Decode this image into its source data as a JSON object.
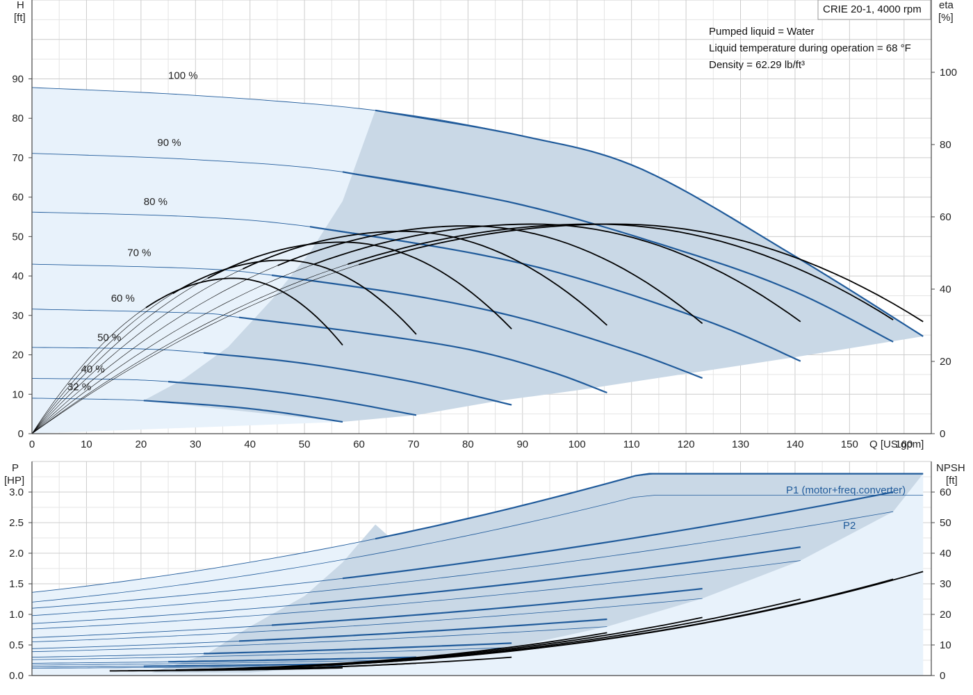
{
  "header": {
    "model": "CRIE 20-1, 4000 rpm",
    "notes": [
      "Pumped liquid = Water",
      "Liquid temperature during operation = 68 °F",
      "Density = 62.29 lb/ft³"
    ]
  },
  "colors": {
    "curve": "#1f5a9a",
    "area": "#c9d8e6",
    "area_light": "#e8f2fb",
    "eff": "#000000",
    "grid": "#cccccc"
  },
  "chart_data": [
    {
      "type": "line",
      "title": "",
      "xlabel": "Q [US gpm]",
      "ylabel": "H\n[ft]",
      "ylabel_top": "H",
      "ylabel_unit": "[ft]",
      "y2label_top": "eta",
      "y2label_unit": "[%]",
      "xlim": [
        0,
        165
      ],
      "ylim": [
        0,
        110
      ],
      "y2lim": [
        0,
        120
      ],
      "xticks": [
        0,
        10,
        20,
        30,
        40,
        50,
        60,
        70,
        80,
        90,
        100,
        110,
        120,
        130,
        140,
        150,
        160
      ],
      "yticks": [
        0,
        10,
        20,
        30,
        40,
        50,
        60,
        70,
        80,
        90
      ],
      "y2ticks": [
        0,
        20,
        40,
        60,
        80,
        100
      ],
      "speed_labels": [
        {
          "text": "100 %",
          "q": 25,
          "h": 90
        },
        {
          "text": "90 %",
          "q": 23,
          "h": 73
        },
        {
          "text": "80 %",
          "q": 20.5,
          "h": 58
        },
        {
          "text": "70 %",
          "q": 17.5,
          "h": 45
        },
        {
          "text": "60 %",
          "q": 14.5,
          "h": 33.5
        },
        {
          "text": "50 %",
          "q": 12,
          "h": 23.5
        },
        {
          "text": "40 %",
          "q": 9,
          "h": 15.5
        },
        {
          "text": "32 %",
          "q": 6.5,
          "h": 11
        }
      ],
      "head_curves": [
        {
          "speed": 100,
          "qmax": 163.5,
          "points": [
            [
              0,
              87.8
            ],
            [
              30,
              85.8
            ],
            [
              63,
              82
            ],
            [
              90,
              75.5
            ],
            [
              112,
              67
            ],
            [
              140,
              45
            ],
            [
              163.5,
              24.7
            ]
          ]
        },
        {
          "speed": 90,
          "qmax": 158,
          "points": [
            [
              0,
              71.1
            ],
            [
              30,
              69.5
            ],
            [
              57,
              66.4
            ],
            [
              90,
              58
            ],
            [
              120,
              46
            ],
            [
              140,
              36
            ],
            [
              158,
              23.3
            ]
          ]
        },
        {
          "speed": 80,
          "qmax": 141,
          "points": [
            [
              0,
              56.2
            ],
            [
              30,
              55
            ],
            [
              51,
              52.5
            ],
            [
              80,
              46
            ],
            [
              100,
              39.5
            ],
            [
              125,
              28
            ],
            [
              141,
              18.4
            ]
          ]
        },
        {
          "speed": 70,
          "qmax": 123,
          "points": [
            [
              0,
              43
            ],
            [
              30,
              41.9
            ],
            [
              44,
              40.2
            ],
            [
              70,
              35
            ],
            [
              90,
              29.2
            ],
            [
              110,
              20.8
            ],
            [
              123,
              14.1
            ]
          ]
        },
        {
          "speed": 60,
          "qmax": 105.5,
          "points": [
            [
              0,
              31.6
            ],
            [
              30,
              30.6
            ],
            [
              38,
              29.5
            ],
            [
              60,
              25.7
            ],
            [
              80,
              21.4
            ],
            [
              95,
              15.8
            ],
            [
              105.5,
              10.4
            ]
          ]
        },
        {
          "speed": 50,
          "qmax": 88,
          "points": [
            [
              0,
              21.9
            ],
            [
              20,
              21.5
            ],
            [
              31.5,
              20.5
            ],
            [
              50,
              17.8
            ],
            [
              70,
              13.1
            ],
            [
              88,
              7.3
            ]
          ]
        },
        {
          "speed": 40,
          "qmax": 70.5,
          "points": [
            [
              0,
              14
            ],
            [
              15,
              13.8
            ],
            [
              25,
              13.2
            ],
            [
              40,
              11.4
            ],
            [
              55,
              8.6
            ],
            [
              70.5,
              4.7
            ]
          ]
        },
        {
          "speed": 32,
          "qmax": 57,
          "points": [
            [
              0,
              9
            ],
            [
              10,
              8.8
            ],
            [
              20.5,
              8.4
            ],
            [
              35,
              7
            ],
            [
              45,
              5.5
            ],
            [
              57,
              3
            ]
          ]
        }
      ],
      "efficiency_curves": [
        {
          "qmax": 57,
          "peak_q": 37,
          "peak": 43,
          "end": 24.5
        },
        {
          "qmax": 70.5,
          "peak_q": 46,
          "peak": 48,
          "end": 27.5
        },
        {
          "qmax": 88,
          "peak_q": 57,
          "peak": 53,
          "end": 29
        },
        {
          "qmax": 105.5,
          "peak_q": 68,
          "peak": 56,
          "end": 30
        },
        {
          "qmax": 123,
          "peak_q": 80,
          "peak": 57.5,
          "end": 30.5
        },
        {
          "qmax": 141,
          "peak_q": 92,
          "peak": 58,
          "end": 31
        },
        {
          "qmax": 158,
          "peak_q": 103,
          "peak": 58,
          "end": 31.5
        },
        {
          "qmax": 163.5,
          "peak_q": 107,
          "peak": 58,
          "end": 31
        }
      ]
    },
    {
      "type": "line",
      "title": "",
      "ylabel_top": "P",
      "ylabel_unit": "[HP]",
      "y2label_top": "NPSH",
      "y2label_unit": "[ft]",
      "xlim": [
        0,
        165
      ],
      "ylim": [
        0,
        3.5
      ],
      "y2lim": [
        0,
        70
      ],
      "yticks": [
        0.0,
        0.5,
        1.0,
        1.5,
        2.0,
        2.5,
        3.0
      ],
      "y2ticks": [
        0,
        10,
        20,
        30,
        40,
        50,
        60
      ],
      "series_labels": [
        "P1 (motor+freq.converter)",
        "P2"
      ],
      "p1_curves": [
        {
          "qmax": 163.5,
          "p0": 1.36,
          "pmax": 3.3,
          "flat_from": 112
        },
        {
          "qmax": 158,
          "p0": 1.1,
          "pmax": 3.0
        },
        {
          "qmax": 141,
          "p0": 0.85,
          "pmax": 2.1
        },
        {
          "qmax": 123,
          "p0": 0.62,
          "pmax": 1.42
        },
        {
          "qmax": 105.5,
          "p0": 0.44,
          "pmax": 0.92
        },
        {
          "qmax": 88,
          "p0": 0.3,
          "pmax": 0.53
        },
        {
          "qmax": 70.5,
          "p0": 0.2,
          "pmax": 0.3
        },
        {
          "qmax": 57,
          "p0": 0.14,
          "pmax": 0.19
        }
      ],
      "p2_curves": [
        {
          "qmax": 163.5,
          "p0": 1.2,
          "pmax": 2.95,
          "flat_from": 112
        },
        {
          "qmax": 158,
          "p0": 0.98,
          "pmax": 2.68
        },
        {
          "qmax": 141,
          "p0": 0.76,
          "pmax": 1.88
        },
        {
          "qmax": 123,
          "p0": 0.55,
          "pmax": 1.26
        },
        {
          "qmax": 105.5,
          "p0": 0.39,
          "pmax": 0.8
        },
        {
          "qmax": 88,
          "p0": 0.26,
          "pmax": 0.46
        },
        {
          "qmax": 70.5,
          "p0": 0.17,
          "pmax": 0.26
        },
        {
          "qmax": 57,
          "p0": 0.12,
          "pmax": 0.16
        }
      ],
      "npsh_curves": [
        {
          "qmax": 57,
          "end": 2.5
        },
        {
          "qmax": 70.5,
          "end": 4
        },
        {
          "qmax": 88,
          "end": 6
        },
        {
          "qmax": 105.5,
          "end": 14
        },
        {
          "qmax": 123,
          "end": 19
        },
        {
          "qmax": 141,
          "end": 25
        },
        {
          "qmax": 158,
          "end": 31.5
        },
        {
          "qmax": 163.5,
          "end": 34
        }
      ]
    }
  ]
}
